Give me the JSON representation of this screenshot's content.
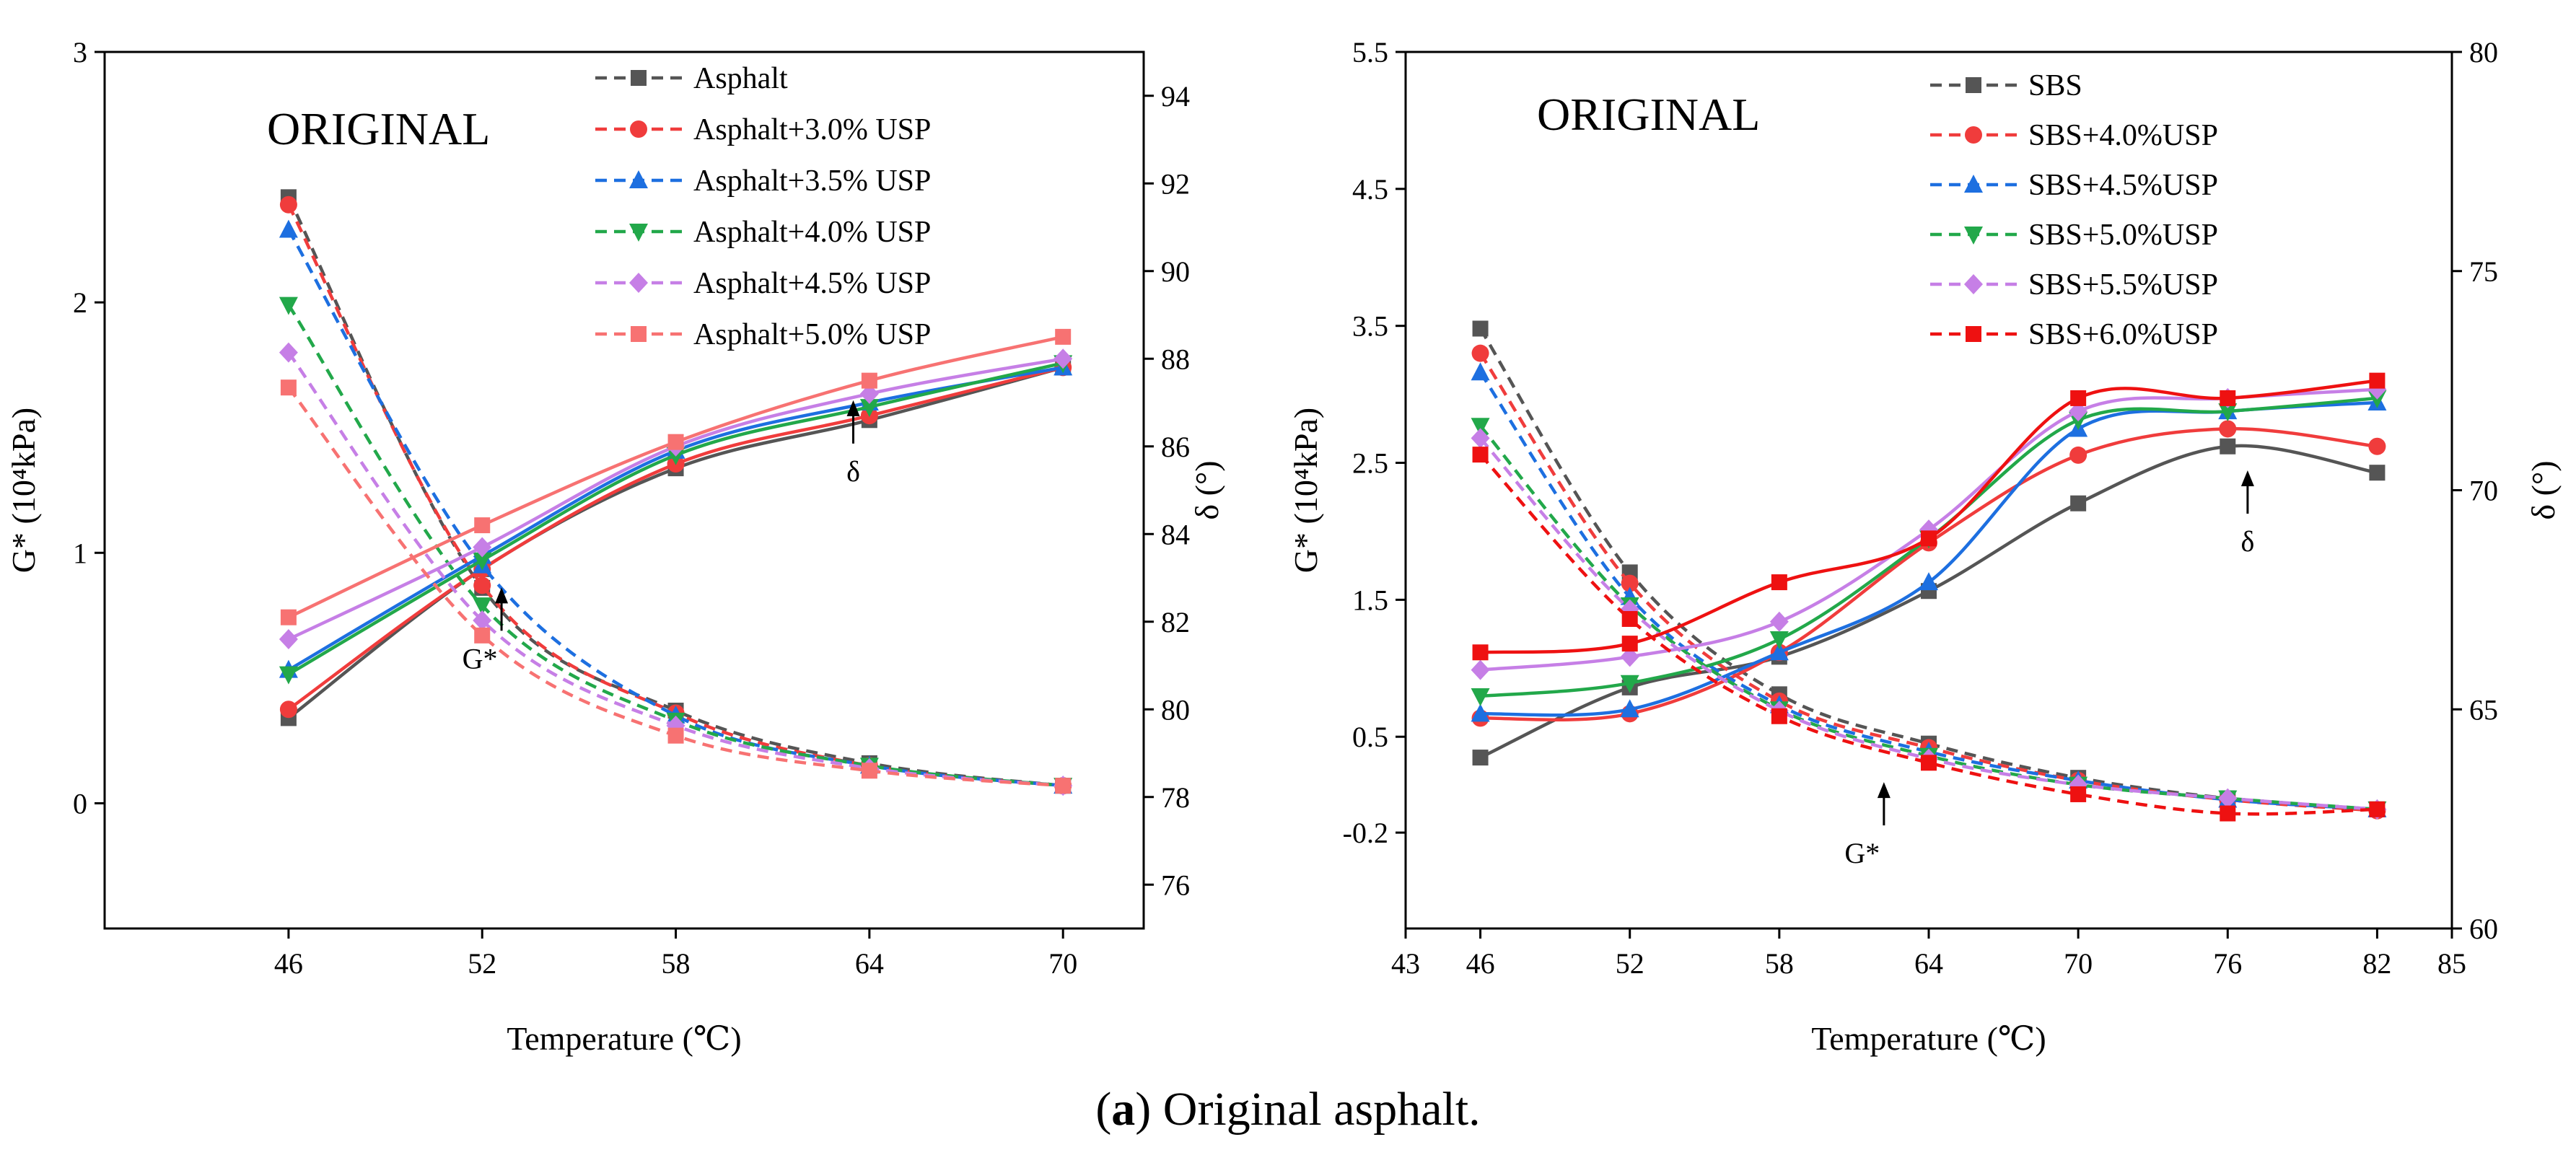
{
  "caption": {
    "label": "a",
    "text": "Original asphalt."
  },
  "chart_data": [
    {
      "type": "line",
      "inset_label": "ORIGINAL",
      "xlabel": "Temperature (℃)",
      "ylabel": "G* (10⁴kPa)",
      "ylabel_right": "δ (°)",
      "xlim": [
        40.3,
        72.5
      ],
      "ylim": [
        -0.5,
        3.0
      ],
      "ylim_right": [
        75,
        95
      ],
      "x_ticks": [
        46,
        52,
        58,
        64,
        70
      ],
      "y_ticks": [
        0,
        1,
        2,
        3
      ],
      "y_ticks_right": [
        76,
        78,
        80,
        82,
        84,
        86,
        88,
        90,
        92,
        94
      ],
      "annotations": [
        {
          "text": "G*",
          "x": 52.6,
          "y": 0.66
        },
        {
          "text": "δ",
          "x": 63.5,
          "y": 85.9
        }
      ],
      "x": [
        46,
        52,
        58,
        64,
        70
      ],
      "series": [
        {
          "name": "Asphalt",
          "color": "#555555",
          "marker": "square",
          "g_star": [
            2.42,
            0.86,
            0.37,
            0.16,
            0.07
          ],
          "delta": [
            79.8,
            83.2,
            85.5,
            86.6,
            87.8
          ]
        },
        {
          "name": "Asphalt+3.0% USP",
          "color": "#f03c3c",
          "marker": "circle",
          "g_star": [
            2.39,
            0.87,
            0.36,
            0.15,
            0.07
          ],
          "delta": [
            80.0,
            83.2,
            85.6,
            86.7,
            87.8
          ]
        },
        {
          "name": "Asphalt+3.5% USP",
          "color": "#1d6fe0",
          "marker": "triangle-up",
          "g_star": [
            2.29,
            0.95,
            0.35,
            0.15,
            0.07
          ],
          "delta": [
            80.9,
            83.5,
            85.9,
            87.0,
            87.8
          ]
        },
        {
          "name": "Asphalt+4.0% USP",
          "color": "#22a84a",
          "marker": "triangle-down",
          "g_star": [
            1.99,
            0.79,
            0.33,
            0.15,
            0.07
          ],
          "delta": [
            80.8,
            83.4,
            85.8,
            86.9,
            87.9
          ]
        },
        {
          "name": "Asphalt+4.5% USP",
          "color": "#c67fe6",
          "marker": "diamond",
          "g_star": [
            1.8,
            0.73,
            0.31,
            0.14,
            0.07
          ],
          "delta": [
            81.6,
            83.7,
            86.0,
            87.2,
            88.0
          ]
        },
        {
          "name": "Asphalt+5.0% USP",
          "color": "#f77272",
          "marker": "square",
          "g_star": [
            1.66,
            0.67,
            0.27,
            0.13,
            0.07
          ],
          "delta": [
            82.1,
            84.2,
            86.1,
            87.5,
            88.5
          ]
        }
      ]
    },
    {
      "type": "line",
      "inset_label": "ORIGINAL",
      "xlabel": "Temperature (℃)",
      "ylabel": "G* (10⁴kPa)",
      "ylabel_right": "δ (°)",
      "xlim": [
        43,
        85
      ],
      "ylim": [
        -0.9,
        5.5
      ],
      "ylim_right": [
        60,
        80
      ],
      "x_ticks": [
        43,
        46,
        52,
        58,
        64,
        70,
        76,
        82,
        85
      ],
      "y_ticks": [
        -0.2,
        0.5,
        1.5,
        2.5,
        3.5,
        4.5,
        5.5
      ],
      "y_ticks_right": [
        60,
        65,
        70,
        75,
        80
      ],
      "annotations": [
        {
          "text": "G*",
          "x": 62.2,
          "y": -0.2
        },
        {
          "text": "δ",
          "x": 76.8,
          "y": 69.3
        }
      ],
      "x": [
        46,
        52,
        58,
        64,
        70,
        76,
        82
      ],
      "series": [
        {
          "name": "SBS",
          "color": "#555555",
          "marker": "square",
          "g_star": [
            3.48,
            1.7,
            0.81,
            0.45,
            0.2,
            0.05,
            -0.03
          ],
          "delta": [
            63.9,
            65.5,
            66.2,
            67.7,
            69.7,
            71.0,
            70.4
          ]
        },
        {
          "name": "SBS+4.0%USP",
          "color": "#f03c3c",
          "marker": "circle",
          "g_star": [
            3.3,
            1.62,
            0.76,
            0.42,
            0.18,
            0.04,
            -0.04
          ],
          "delta": [
            64.8,
            64.9,
            66.3,
            68.8,
            70.8,
            71.4,
            71.0
          ]
        },
        {
          "name": "SBS+4.5%USP",
          "color": "#1d6fe0",
          "marker": "triangle-up",
          "g_star": [
            3.16,
            1.52,
            0.73,
            0.39,
            0.18,
            0.04,
            -0.03
          ],
          "delta": [
            64.9,
            65.0,
            66.3,
            67.9,
            71.4,
            71.8,
            72.0
          ]
        },
        {
          "name": "SBS+5.0%USP",
          "color": "#22a84a",
          "marker": "triangle-down",
          "g_star": [
            2.77,
            1.46,
            0.7,
            0.36,
            0.15,
            0.05,
            -0.03
          ],
          "delta": [
            65.3,
            65.6,
            66.6,
            68.9,
            71.6,
            71.8,
            72.1
          ]
        },
        {
          "name": "SBS+5.5%USP",
          "color": "#c67fe6",
          "marker": "diamond",
          "g_star": [
            2.68,
            1.43,
            0.69,
            0.34,
            0.15,
            0.05,
            -0.03
          ],
          "delta": [
            65.9,
            66.2,
            67.0,
            69.1,
            71.8,
            72.1,
            72.3
          ]
        },
        {
          "name": "SBS+6.0%USP",
          "color": "#ee1111",
          "marker": "square",
          "g_star": [
            2.56,
            1.36,
            0.65,
            0.31,
            0.08,
            -0.06,
            -0.03
          ],
          "delta": [
            66.3,
            66.5,
            67.9,
            68.9,
            72.1,
            72.1,
            72.5
          ]
        }
      ]
    }
  ]
}
